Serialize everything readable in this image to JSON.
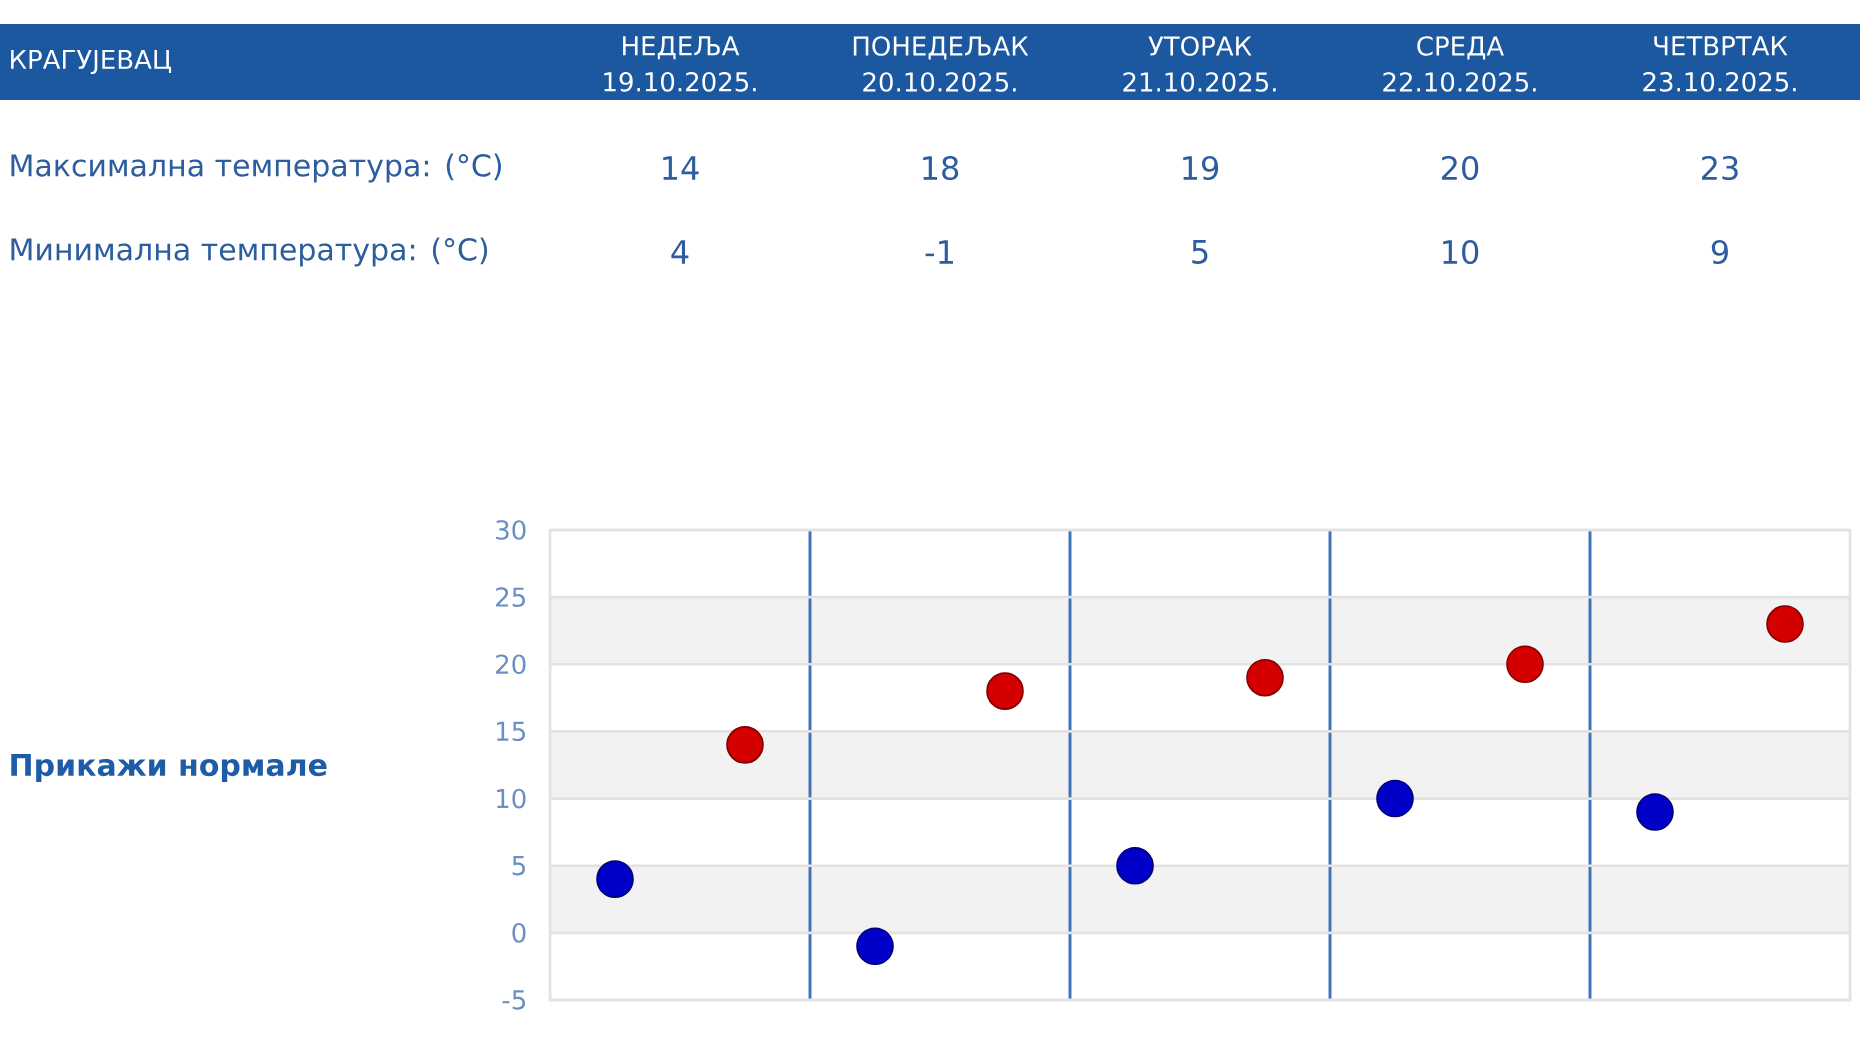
{
  "chart_data": {
    "type": "scatter",
    "title": "КРАГУЈЕВАЦ",
    "categories": [
      null,
      null,
      null,
      null,
      null
    ],
    "series": [
      {
        "color": "#d40000",
        "values": [
          14,
          18,
          19,
          20,
          23
        ]
      },
      {
        "color": "#0000c8",
        "values": [
          4,
          -1,
          5,
          10,
          9
        ]
      }
    ],
    "data_labels": true,
    "marker": "circle",
    "ylim": [
      -5,
      30
    ],
    "yticks": [
      -5,
      0,
      5,
      10,
      15,
      20,
      25,
      30
    ],
    "grid": true,
    "bands": [
      {
        "axis": "y",
        "from": 0,
        "to": 5,
        "color": "#f2f2f2"
      },
      {
        "axis": "y",
        "from": 10,
        "to": 15,
        "color": "#f2f2f2"
      },
      {
        "axis": "y",
        "from": 20,
        "to": 25,
        "color": "#f2f2f2"
      }
    ],
    "annotations": [
      "НЕДЕЉА 19.10.2025.",
      "ПОНЕДЕЉАК 20.10.2025.",
      "УТОРАК 21.10.2025.",
      "СРЕДА 22.10.2025.",
      "ЧЕТВРТАК 23.10.2025.",
      "Максимална температура: (°C)",
      "Минимална температура: (°C)",
      "Прикажи нормале"
    ]
  }
}
